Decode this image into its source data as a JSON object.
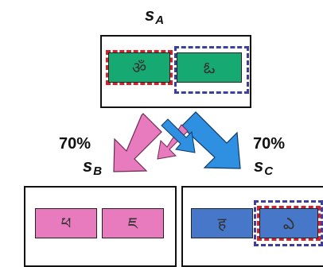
{
  "labels": {
    "top": {
      "letter": "s",
      "sub": "A"
    },
    "left": {
      "letter": "s",
      "sub": "B"
    },
    "right": {
      "letter": "s",
      "sub": "C"
    }
  },
  "percentages": {
    "left": "70%",
    "right": "70%"
  },
  "glyphs": {
    "a_left": "ॐ",
    "a_right": "ఓ",
    "b_left": "ཕ",
    "b_right": "ཇ",
    "c_left": "ह",
    "c_right": "ఎ"
  },
  "colors": {
    "green": "#16a971",
    "pink": "#e87bbd",
    "blue": "#4677c8",
    "red_dash": "#d5212a",
    "navy_dash": "#3d3f9c"
  }
}
